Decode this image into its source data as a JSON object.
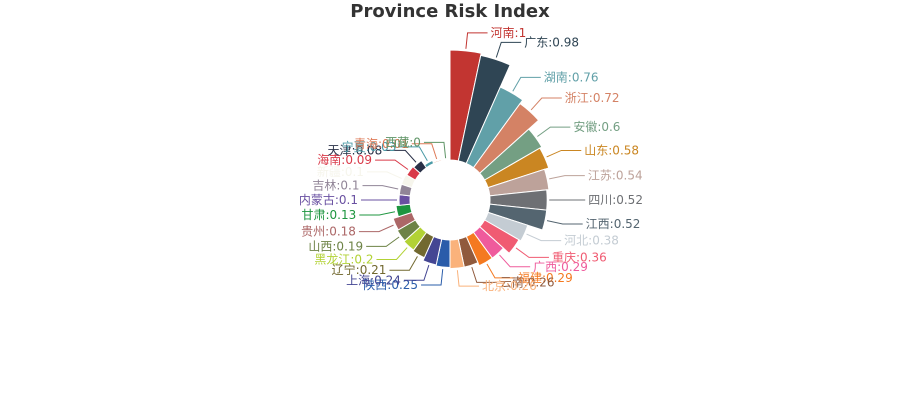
{
  "chart_data": {
    "type": "rose",
    "title": "Province Risk Index",
    "series": [
      {
        "name": "河南",
        "value": 1,
        "color": "#c23531"
      },
      {
        "name": "广东",
        "value": 0.98,
        "color": "#2f4554"
      },
      {
        "name": "湖南",
        "value": 0.76,
        "color": "#61a0a8"
      },
      {
        "name": "浙江",
        "value": 0.72,
        "color": "#d48265"
      },
      {
        "name": "安徽",
        "value": 0.6,
        "color": "#749f83"
      },
      {
        "name": "山东",
        "value": 0.58,
        "color": "#ca8622"
      },
      {
        "name": "江苏",
        "value": 0.54,
        "color": "#bda29a"
      },
      {
        "name": "四川",
        "value": 0.52,
        "color": "#6e7074"
      },
      {
        "name": "江西",
        "value": 0.52,
        "color": "#546570"
      },
      {
        "name": "河北",
        "value": 0.38,
        "color": "#c4ccd3"
      },
      {
        "name": "重庆",
        "value": 0.36,
        "color": "#f05b72"
      },
      {
        "name": "广西",
        "value": 0.29,
        "color": "#ef5b9c"
      },
      {
        "name": "福建",
        "value": 0.29,
        "color": "#f47920"
      },
      {
        "name": "云南",
        "value": 0.26,
        "color": "#905a3d"
      },
      {
        "name": "北京",
        "value": 0.26,
        "color": "#fab27b"
      },
      {
        "name": "陕西",
        "value": 0.25,
        "color": "#2a5caa"
      },
      {
        "name": "上海",
        "value": 0.24,
        "color": "#444693"
      },
      {
        "name": "辽宁",
        "value": 0.21,
        "color": "#726930"
      },
      {
        "name": "黑龙江",
        "value": 0.2,
        "color": "#b2d235"
      },
      {
        "name": "山西",
        "value": 0.19,
        "color": "#6d8346"
      },
      {
        "name": "贵州",
        "value": 0.18,
        "color": "#ac6767"
      },
      {
        "name": "甘肃",
        "value": 0.13,
        "color": "#1d953f"
      },
      {
        "name": "内蒙古",
        "value": 0.1,
        "color": "#6950a1"
      },
      {
        "name": "吉林",
        "value": 0.1,
        "color": "#918597"
      },
      {
        "name": "新疆",
        "value": 0.1,
        "color": "#f6f5ec"
      },
      {
        "name": "海南",
        "value": 0.09,
        "color": "#d93a49"
      },
      {
        "name": "天津",
        "value": 0.08,
        "color": "#293047"
      },
      {
        "name": "宁夏",
        "value": 0.03,
        "color": "#4a9aa6"
      },
      {
        "name": "青海",
        "value": 0.01,
        "color": "#de7a57"
      },
      {
        "name": "西藏",
        "value": 0,
        "color": "#5e9466"
      }
    ]
  }
}
